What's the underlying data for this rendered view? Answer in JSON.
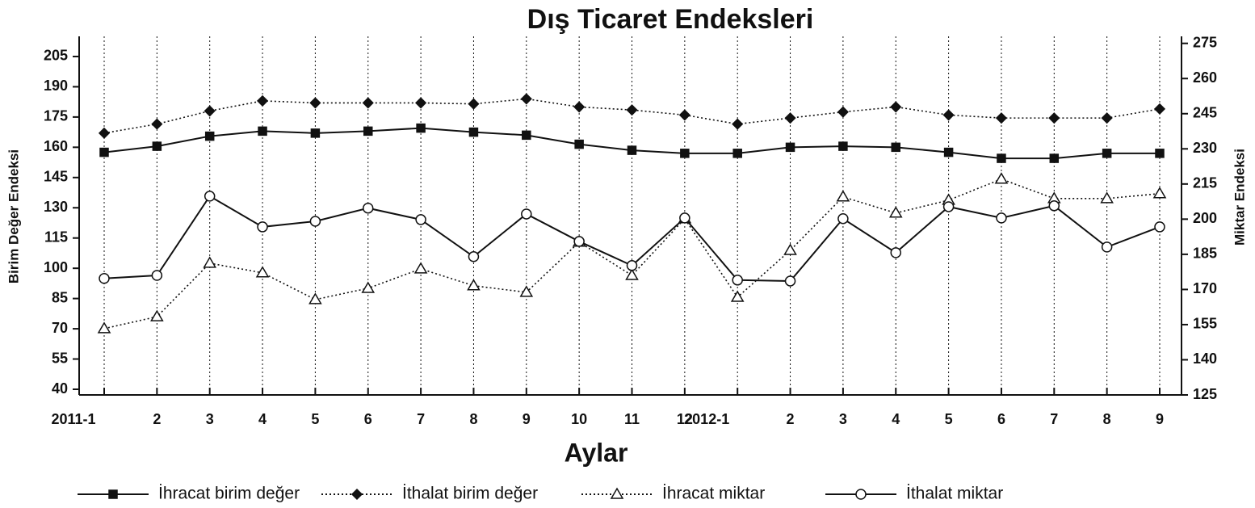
{
  "chart_data": {
    "type": "line",
    "title": "Dış Ticaret Endeksleri",
    "x_label": "Aylar",
    "y_label": "Birim Değer Endeksi",
    "y2_label": "Miktar Endeksi",
    "categories": [
      "2011-1",
      "2",
      "3",
      "4",
      "5",
      "6",
      "7",
      "8",
      "9",
      "10",
      "11",
      "12",
      "2012-1",
      "2",
      "3",
      "4",
      "5",
      "6",
      "7",
      "8",
      "9"
    ],
    "ylim": [
      40,
      215
    ],
    "yticks": [
      40,
      55,
      70,
      85,
      100,
      115,
      130,
      145,
      160,
      175,
      190,
      205
    ],
    "y2lim": [
      125,
      278
    ],
    "y2ticks": [
      125,
      140,
      155,
      170,
      185,
      200,
      215,
      230,
      245,
      260,
      275
    ],
    "grid": "x",
    "legend": "bottom",
    "series": [
      {
        "name": "İhracat birim değer",
        "color": "#111111",
        "dash": "solid",
        "marker": "square",
        "values": [
          157.5,
          160.5,
          165.5,
          168,
          167,
          168,
          169.5,
          167.5,
          166,
          161.5,
          158.5,
          157,
          157,
          160,
          160.5,
          160,
          157.5,
          154.5,
          154.5,
          157,
          157
        ]
      },
      {
        "name": "İthalat birim değer",
        "color": "#111111",
        "dash": "dotted",
        "marker": "diamond",
        "values": [
          167,
          171.5,
          178,
          183,
          182,
          182,
          182,
          181.5,
          184,
          180,
          178.5,
          176,
          171.5,
          174.5,
          177.5,
          180,
          176,
          174.5,
          174.5,
          174.5,
          179
        ]
      },
      {
        "name": "İhracat miktar",
        "color": "#111111",
        "dash": "dotted",
        "marker": "triangle",
        "axis": "y2",
        "values": [
          153.3,
          158.4,
          181.2,
          177.1,
          165.7,
          170.5,
          178.8,
          171.6,
          168.8,
          190.2,
          176,
          200.2,
          166.7,
          186.7,
          209.5,
          202.6,
          208.1,
          217.1,
          208.8,
          208.8,
          210.9
        ]
      },
      {
        "name": "İthalat miktar",
        "color": "#111111",
        "dash": "solid",
        "marker": "circle",
        "axis": "y2",
        "values": [
          174.7,
          176,
          209.8,
          196.7,
          199.1,
          204.7,
          199.8,
          184,
          202.2,
          190.5,
          180.2,
          200.5,
          174,
          173.6,
          200.2,
          185.7,
          205.3,
          200.5,
          205.7,
          188.1,
          196.7
        ]
      }
    ]
  }
}
